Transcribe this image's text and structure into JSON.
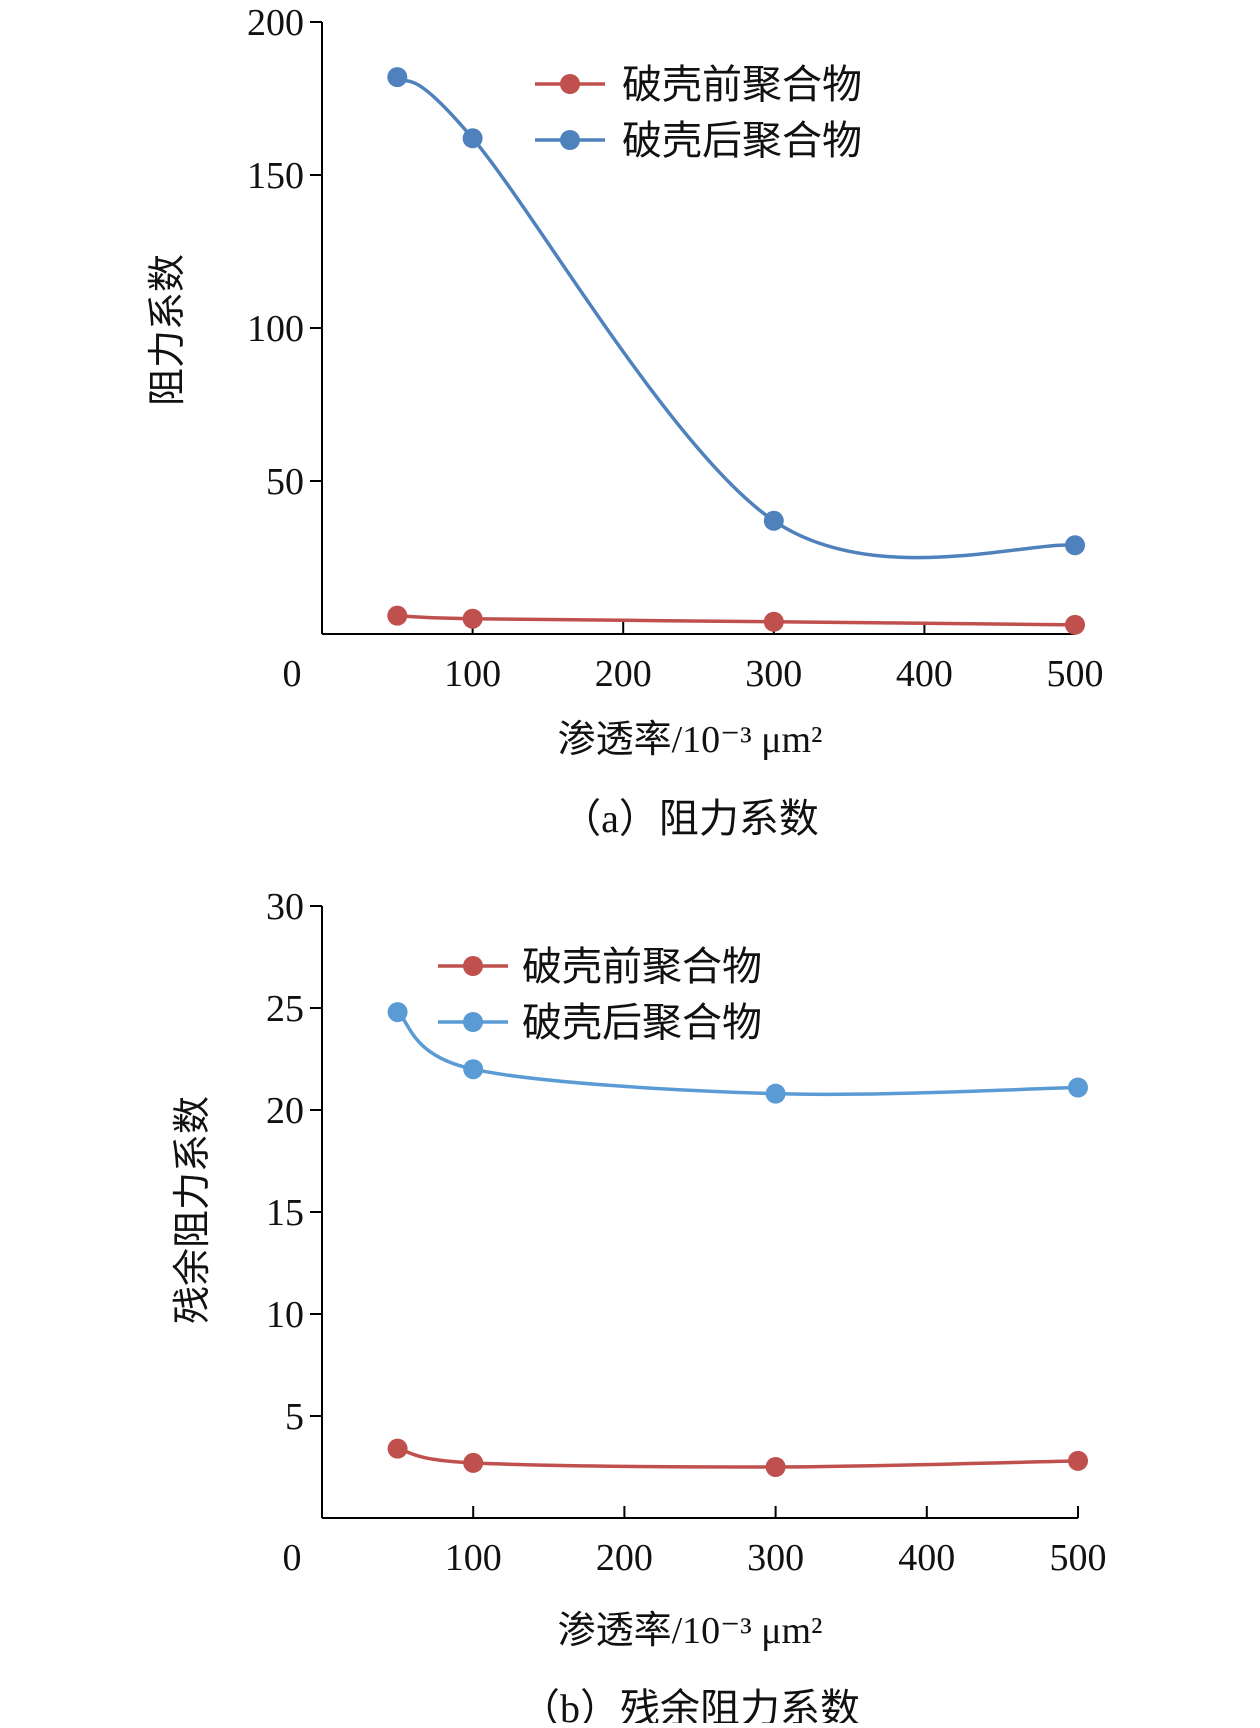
{
  "chart_data": [
    {
      "type": "line",
      "caption": "（a）阻力系数",
      "xlabel": "渗透率/10⁻³ μm²",
      "ylabel": "阻力系数",
      "xlim": [
        0,
        500
      ],
      "ylim": [
        0,
        200
      ],
      "x_ticks": [
        0,
        100,
        200,
        300,
        400,
        500
      ],
      "y_ticks": [
        50,
        100,
        150,
        200
      ],
      "legend": "top-right",
      "series": [
        {
          "name": "破壳前聚合物",
          "color": "#c0504d",
          "x": [
            50,
            100,
            300,
            500
          ],
          "y": [
            6,
            5,
            4,
            3
          ]
        },
        {
          "name": "破壳后聚合物",
          "color": "#4f81bd",
          "x": [
            50,
            100,
            300,
            500
          ],
          "y": [
            182,
            162,
            37,
            29
          ]
        }
      ]
    },
    {
      "type": "line",
      "caption": "（b）残余阻力系数",
      "xlabel": "渗透率/10⁻³ μm²",
      "ylabel": "残余阻力系数",
      "xlim": [
        0,
        500
      ],
      "ylim": [
        0,
        30
      ],
      "x_ticks": [
        0,
        100,
        200,
        300,
        400,
        500
      ],
      "y_ticks": [
        5,
        10,
        15,
        20,
        25,
        30
      ],
      "legend": "top-right",
      "series": [
        {
          "name": "破壳前聚合物",
          "color": "#c0504d",
          "x": [
            50,
            100,
            300,
            500
          ],
          "y": [
            3.4,
            2.7,
            2.5,
            2.8
          ]
        },
        {
          "name": "破壳后聚合物",
          "color": "#5b9bd5",
          "x": [
            50,
            100,
            300,
            500
          ],
          "y": [
            24.8,
            22.0,
            20.8,
            21.1
          ]
        }
      ]
    }
  ]
}
